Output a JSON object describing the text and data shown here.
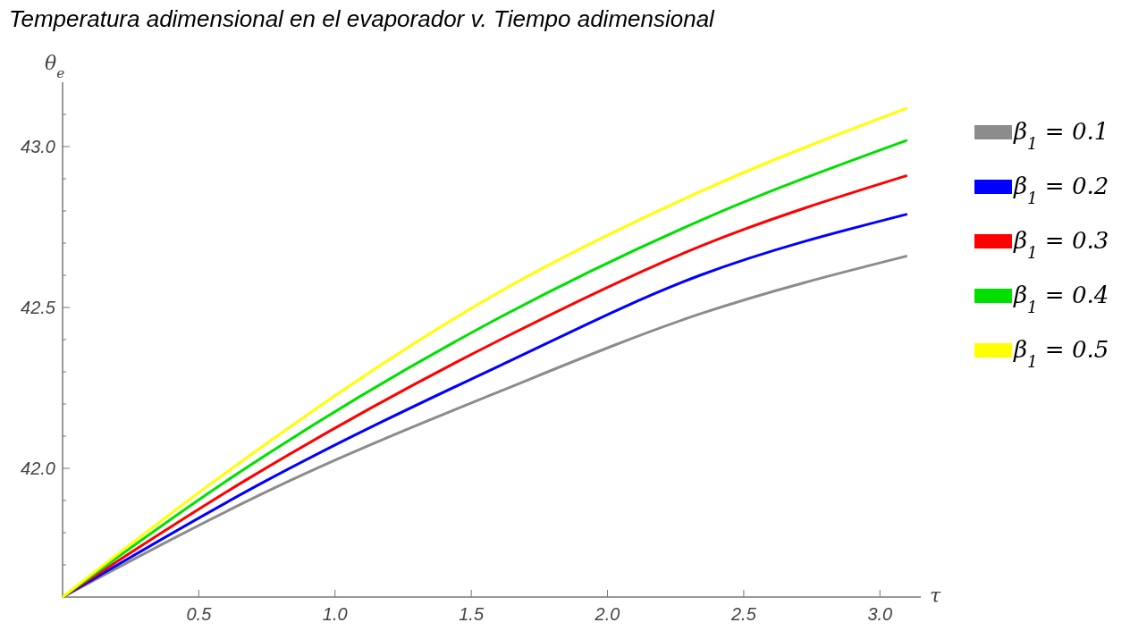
{
  "chart_data": {
    "type": "line",
    "title": "Temperatura adimensional en el evaporador v. Tiempo adimensional",
    "xlabel": "τ",
    "ylabel": "θ$_{e}$",
    "xlim": [
      0,
      3.15
    ],
    "ylim": [
      41.6,
      43.2
    ],
    "xticks": [
      {
        "value": 0.5,
        "label": "0.5"
      },
      {
        "value": 1,
        "label": "1.0"
      },
      {
        "value": 1.5,
        "label": "1.5"
      },
      {
        "value": 2,
        "label": "2.0"
      },
      {
        "value": 2.5,
        "label": "2.5"
      },
      {
        "value": 3,
        "label": "3.0"
      }
    ],
    "yticks": [
      {
        "value": 41.7,
        "label": null
      },
      {
        "value": 41.8,
        "label": null
      },
      {
        "value": 41.9,
        "label": null
      },
      {
        "value": 42,
        "label": "42.0"
      },
      {
        "value": 42.1,
        "label": null
      },
      {
        "value": 42.2,
        "label": null
      },
      {
        "value": 42.3,
        "label": null
      },
      {
        "value": 42.4,
        "label": null
      },
      {
        "value": 42.5,
        "label": "42.5"
      },
      {
        "value": 42.6,
        "label": null
      },
      {
        "value": 42.7,
        "label": null
      },
      {
        "value": 42.8,
        "label": null
      },
      {
        "value": 42.9,
        "label": null
      },
      {
        "value": 43,
        "label": "43.0"
      },
      {
        "value": 43.1,
        "label": null
      }
    ],
    "grid": false,
    "legend": "right",
    "marker": "none",
    "line_style": "solid",
    "series": [
      {
        "name": "β$_{1}$ = 0.1",
        "color": "#8c8c8c",
        "x": [
          0,
          0.83,
          1.607,
          2.34,
          3.1
        ],
        "values": [
          41.6,
          41.96,
          42.24,
          42.48,
          42.66
        ]
      },
      {
        "name": "β$_{1}$ = 0.2",
        "color": "#0000ff",
        "x": [
          0,
          0.744,
          1.607,
          2.34,
          3.1
        ],
        "values": [
          41.6,
          41.96,
          42.32,
          42.6,
          42.79
        ]
      },
      {
        "name": "β$_{1}$ = 0.3",
        "color": "#ff0000",
        "x": [
          0,
          0.666,
          1.607,
          2.34,
          3.1
        ],
        "values": [
          41.6,
          41.96,
          42.4,
          42.69,
          42.91
        ]
      },
      {
        "name": "β$_{1}$ = 0.4",
        "color": "#00e000",
        "x": [
          0,
          0.6,
          1.607,
          2.34,
          3.1
        ],
        "values": [
          41.6,
          41.96,
          42.47,
          42.77,
          43.02
        ]
      },
      {
        "name": "β$_{1}$ = 0.5",
        "color": "#ffff00",
        "x": [
          0,
          0.557,
          1.607,
          2.34,
          3.1
        ],
        "values": [
          41.6,
          41.96,
          42.55,
          42.86,
          43.12
        ]
      }
    ]
  }
}
